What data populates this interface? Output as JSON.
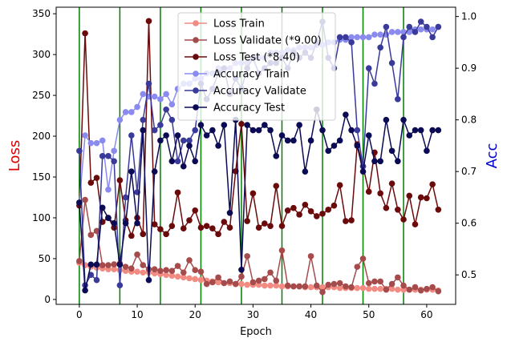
{
  "chart_data": {
    "type": "line",
    "xlabel": "Epoch",
    "ylabel_left": "Loss",
    "ylabel_right": "Acc",
    "xlim": [
      -4,
      65
    ],
    "ylim_left": [
      -6,
      358
    ],
    "ylim_right": [
      0.443,
      1.018
    ],
    "x_ticks": [
      0,
      10,
      20,
      30,
      40,
      50,
      60
    ],
    "y_left_ticks": [
      0,
      50,
      100,
      150,
      200,
      250,
      300,
      350
    ],
    "y_right_ticks": [
      0.5,
      0.6,
      0.7,
      0.8,
      0.9,
      1.0
    ],
    "vlines": [
      0,
      7,
      14,
      21,
      28,
      35,
      42,
      49,
      56
    ],
    "vline_color": "#008000",
    "ylabel_left_color": "#e00000",
    "ylabel_right_color": "#0000cc",
    "legend_position": "top-center",
    "grid": false,
    "series": [
      {
        "name": "Loss Train",
        "axis": "left",
        "color": "#f28b82",
        "x": [
          0,
          1,
          2,
          3,
          4,
          5,
          6,
          7,
          8,
          9,
          10,
          11,
          12,
          13,
          14,
          15,
          16,
          17,
          18,
          19,
          20,
          21,
          22,
          23,
          24,
          25,
          26,
          27,
          28,
          29,
          30,
          31,
          32,
          33,
          34,
          35,
          36,
          37,
          38,
          39,
          40,
          41,
          42,
          43,
          44,
          45,
          46,
          47,
          48,
          49,
          50,
          51,
          52,
          53,
          54,
          55,
          56,
          57,
          58,
          59,
          60,
          61,
          62
        ],
        "values": [
          45,
          42,
          40,
          39,
          38,
          37,
          37,
          36,
          35,
          34,
          34,
          33,
          33,
          32,
          31,
          30,
          29,
          28,
          27,
          26,
          25,
          24,
          23,
          22,
          21,
          20,
          20,
          19,
          19,
          18,
          18,
          18,
          17,
          17,
          17,
          16,
          16,
          16,
          16,
          15,
          15,
          15,
          15,
          15,
          15,
          14,
          14,
          14,
          14,
          14,
          13,
          13,
          13,
          13,
          13,
          12,
          12,
          12,
          12,
          12,
          12,
          12,
          11
        ]
      },
      {
        "name": "Loss Validate (*9.00)",
        "axis": "left",
        "color": "#a64b4b",
        "x": [
          0,
          1,
          2,
          3,
          4,
          5,
          6,
          7,
          8,
          9,
          10,
          11,
          12,
          13,
          14,
          15,
          16,
          17,
          18,
          19,
          20,
          21,
          22,
          23,
          24,
          25,
          26,
          27,
          28,
          29,
          30,
          31,
          32,
          33,
          34,
          35,
          36,
          37,
          38,
          39,
          40,
          41,
          42,
          43,
          44,
          45,
          46,
          47,
          48,
          49,
          50,
          51,
          52,
          53,
          54,
          55,
          56,
          57,
          58,
          59,
          60,
          61,
          62
        ],
        "values": [
          47,
          122,
          79,
          84,
          42,
          42,
          43,
          44,
          40,
          38,
          55,
          42,
          37,
          37,
          35,
          36,
          35,
          41,
          33,
          48,
          36,
          34,
          19,
          21,
          27,
          20,
          22,
          19,
          28,
          53,
          21,
          23,
          25,
          33,
          23,
          60,
          17,
          16,
          16,
          16,
          53,
          17,
          9,
          18,
          19,
          20,
          16,
          15,
          40,
          50,
          20,
          22,
          22,
          12,
          19,
          27,
          17,
          12,
          15,
          11,
          13,
          15,
          10
        ]
      },
      {
        "name": "Loss Test (*8.40)",
        "axis": "left",
        "color": "#6b0a0a",
        "x": [
          0,
          1,
          2,
          3,
          4,
          5,
          6,
          7,
          8,
          9,
          10,
          11,
          12,
          13,
          14,
          15,
          16,
          17,
          18,
          19,
          20,
          21,
          22,
          23,
          24,
          25,
          26,
          27,
          28,
          29,
          30,
          31,
          32,
          33,
          34,
          35,
          36,
          37,
          38,
          39,
          40,
          41,
          42,
          43,
          44,
          45,
          46,
          47,
          48,
          49,
          50,
          51,
          52,
          53,
          54,
          55,
          56,
          57,
          58,
          59,
          60,
          61,
          62
        ],
        "values": [
          115,
          326,
          143,
          149,
          95,
          100,
          88,
          146,
          97,
          78,
          100,
          80,
          341,
          92,
          86,
          80,
          90,
          131,
          87,
          97,
          109,
          88,
          90,
          87,
          80,
          95,
          88,
          157,
          215,
          96,
          130,
          88,
          93,
          90,
          139,
          90,
          109,
          112,
          104,
          116,
          108,
          102,
          105,
          110,
          115,
          140,
          96,
          97,
          190,
          163,
          132,
          180,
          130,
          112,
          142,
          110,
          98,
          127,
          92,
          125,
          124,
          141,
          110
        ]
      },
      {
        "name": "Accuracy Train",
        "axis": "right",
        "color": "#8b8bef",
        "x": [
          0,
          1,
          2,
          3,
          4,
          5,
          6,
          7,
          8,
          9,
          10,
          11,
          12,
          13,
          14,
          15,
          16,
          17,
          18,
          19,
          20,
          21,
          22,
          23,
          24,
          25,
          26,
          27,
          28,
          29,
          30,
          31,
          32,
          33,
          34,
          35,
          36,
          37,
          38,
          39,
          40,
          41,
          42,
          43,
          44,
          45,
          46,
          47,
          48,
          49,
          50,
          51,
          52,
          53,
          54,
          55,
          56,
          57,
          58,
          59,
          60,
          61,
          62
        ],
        "values": [
          0.64,
          0.77,
          0.755,
          0.755,
          0.76,
          0.665,
          0.74,
          0.8,
          0.815,
          0.815,
          0.825,
          0.85,
          0.845,
          0.845,
          0.84,
          0.85,
          0.83,
          0.86,
          0.87,
          0.87,
          0.88,
          0.88,
          0.89,
          0.89,
          0.9,
          0.9,
          0.9,
          0.91,
          0.91,
          0.91,
          0.92,
          0.92,
          0.92,
          0.93,
          0.93,
          0.93,
          0.935,
          0.935,
          0.94,
          0.94,
          0.94,
          0.945,
          0.945,
          0.95,
          0.95,
          0.955,
          0.955,
          0.96,
          0.96,
          0.96,
          0.96,
          0.965,
          0.965,
          0.965,
          0.97,
          0.97,
          0.97,
          0.97,
          0.975,
          0.975,
          0.975,
          0.975,
          0.98
        ]
      },
      {
        "name": "Accuracy Validate",
        "axis": "right",
        "color": "#3a3a9a",
        "x": [
          0,
          1,
          2,
          3,
          4,
          5,
          6,
          7,
          8,
          9,
          10,
          11,
          12,
          13,
          14,
          15,
          16,
          17,
          18,
          19,
          20,
          21,
          22,
          23,
          24,
          25,
          26,
          27,
          28,
          29,
          30,
          31,
          32,
          33,
          34,
          35,
          36,
          37,
          38,
          39,
          40,
          41,
          42,
          43,
          44,
          45,
          46,
          47,
          48,
          49,
          50,
          51,
          52,
          53,
          54,
          55,
          56,
          57,
          58,
          59,
          60,
          61,
          62
        ],
        "values": [
          0.74,
          0.48,
          0.5,
          0.49,
          0.73,
          0.73,
          0.72,
          0.48,
          0.65,
          0.77,
          0.66,
          0.8,
          0.87,
          0.78,
          0.79,
          0.82,
          0.8,
          0.72,
          0.76,
          0.76,
          0.78,
          0.87,
          0.84,
          0.86,
          0.89,
          0.9,
          0.85,
          0.88,
          0.86,
          0.9,
          0.92,
          0.89,
          0.9,
          0.91,
          0.91,
          0.92,
          0.9,
          0.93,
          0.92,
          0.93,
          0.92,
          0.95,
          0.99,
          0.92,
          0.9,
          0.96,
          0.96,
          0.95,
          0.78,
          0.71,
          0.9,
          0.87,
          0.94,
          0.98,
          0.91,
          0.84,
          0.96,
          0.98,
          0.97,
          0.99,
          0.98,
          0.96,
          0.98
        ]
      },
      {
        "name": "Accuracy Test",
        "axis": "right",
        "color": "#0a0a55",
        "x": [
          0,
          1,
          2,
          3,
          4,
          5,
          6,
          7,
          8,
          9,
          10,
          11,
          12,
          13,
          14,
          15,
          16,
          17,
          18,
          19,
          20,
          21,
          22,
          23,
          24,
          25,
          26,
          27,
          28,
          29,
          30,
          31,
          32,
          33,
          34,
          35,
          36,
          37,
          38,
          39,
          40,
          41,
          42,
          43,
          44,
          45,
          46,
          47,
          48,
          49,
          50,
          51,
          52,
          53,
          54,
          55,
          56,
          57,
          58,
          59,
          60,
          61,
          62
        ],
        "values": [
          0.64,
          0.47,
          0.52,
          0.52,
          0.63,
          0.61,
          0.6,
          0.52,
          0.6,
          0.7,
          0.6,
          0.78,
          0.49,
          0.7,
          0.76,
          0.77,
          0.72,
          0.77,
          0.71,
          0.75,
          0.72,
          0.79,
          0.77,
          0.78,
          0.75,
          0.79,
          0.62,
          0.8,
          0.51,
          0.79,
          0.78,
          0.78,
          0.79,
          0.78,
          0.73,
          0.77,
          0.76,
          0.76,
          0.79,
          0.7,
          0.76,
          0.82,
          0.78,
          0.74,
          0.75,
          0.76,
          0.81,
          0.78,
          0.75,
          0.7,
          0.77,
          0.72,
          0.72,
          0.8,
          0.74,
          0.72,
          0.8,
          0.77,
          0.78,
          0.78,
          0.74,
          0.78,
          0.78
        ]
      }
    ]
  }
}
